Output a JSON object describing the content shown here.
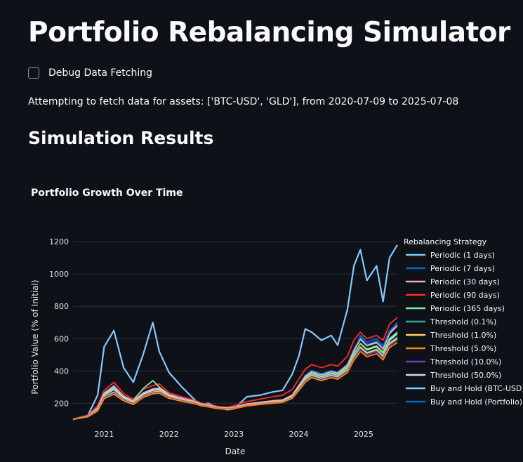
{
  "page": {
    "title": "Portfolio Rebalancing Simulator",
    "debug_checkbox_label": "Debug Data Fetching",
    "debug_checked": false,
    "fetch_message": "Attempting to fetch data for assets: ['BTC-USD', 'GLD'], from 2020-07-09 to 2025-07-08",
    "results_heading": "Simulation Results"
  },
  "chart_data": {
    "type": "line",
    "title": "Portfolio Growth Over Time",
    "xlabel": "Date",
    "ylabel": "Portfolio Value (% of Initial)",
    "x_ticks": [
      "2021",
      "2022",
      "2023",
      "2024",
      "2025"
    ],
    "y_ticks": [
      200,
      400,
      600,
      800,
      1000,
      1200
    ],
    "xlim": [
      2020.52,
      2025.52
    ],
    "ylim": [
      110,
      1240
    ],
    "grid": true,
    "legend_title": "Rebalancing Strategy",
    "legend_position": "right",
    "x": [
      2020.52,
      2020.75,
      2020.9,
      2021.0,
      2021.15,
      2021.3,
      2021.45,
      2021.6,
      2021.75,
      2021.85,
      2022.0,
      2022.2,
      2022.4,
      2022.5,
      2022.6,
      2022.75,
      2022.9,
      2023.0,
      2023.2,
      2023.4,
      2023.6,
      2023.75,
      2023.9,
      2024.0,
      2024.1,
      2024.2,
      2024.35,
      2024.5,
      2024.6,
      2024.75,
      2024.85,
      2024.95,
      2025.05,
      2025.2,
      2025.3,
      2025.4,
      2025.52
    ],
    "series": [
      {
        "name": "Periodic (1 days)",
        "color": "#83c9ff",
        "values": [
          100,
          120,
          170,
          260,
          300,
          240,
          210,
          260,
          285,
          290,
          250,
          230,
          210,
          195,
          190,
          175,
          170,
          175,
          195,
          205,
          215,
          220,
          250,
          310,
          370,
          400,
          380,
          400,
          390,
          440,
          530,
          600,
          560,
          580,
          540,
          640,
          690
        ]
      },
      {
        "name": "Periodic (7 days)",
        "color": "#0068c9",
        "values": [
          100,
          122,
          175,
          265,
          310,
          245,
          212,
          265,
          290,
          295,
          252,
          232,
          212,
          196,
          190,
          176,
          171,
          176,
          196,
          206,
          216,
          221,
          252,
          312,
          372,
          402,
          382,
          402,
          392,
          442,
          535,
          610,
          565,
          585,
          545,
          645,
          700
        ]
      },
      {
        "name": "Periodic (30 days)",
        "color": "#ffabab",
        "values": [
          100,
          121,
          172,
          262,
          305,
          242,
          211,
          262,
          288,
          292,
          251,
          231,
          211,
          195,
          190,
          175,
          170,
          175,
          195,
          205,
          215,
          220,
          250,
          308,
          366,
          396,
          376,
          396,
          386,
          436,
          525,
          595,
          555,
          575,
          535,
          630,
          680
        ]
      },
      {
        "name": "Periodic (90 days)",
        "color": "#ff2b2b",
        "values": [
          100,
          125,
          185,
          280,
          330,
          260,
          225,
          285,
          310,
          320,
          265,
          240,
          218,
          200,
          195,
          180,
          175,
          185,
          210,
          225,
          240,
          250,
          285,
          350,
          410,
          440,
          420,
          440,
          430,
          490,
          590,
          640,
          600,
          620,
          590,
          690,
          730
        ]
      },
      {
        "name": "Periodic (365 days)",
        "color": "#7defa1",
        "values": [
          100,
          120,
          168,
          255,
          295,
          245,
          215,
          290,
          340,
          300,
          255,
          230,
          210,
          194,
          188,
          174,
          168,
          174,
          193,
          203,
          212,
          218,
          246,
          300,
          356,
          386,
          366,
          386,
          376,
          424,
          505,
          570,
          535,
          555,
          515,
          600,
          640
        ]
      },
      {
        "name": "Threshold (0.1%)",
        "color": "#29b09d",
        "values": [
          100,
          118,
          160,
          240,
          270,
          225,
          200,
          245,
          270,
          275,
          240,
          220,
          202,
          188,
          182,
          170,
          165,
          170,
          188,
          197,
          205,
          210,
          238,
          290,
          345,
          375,
          355,
          375,
          365,
          410,
          490,
          550,
          515,
          535,
          495,
          575,
          610
        ]
      },
      {
        "name": "Threshold (1.0%)",
        "color": "#ffd16a",
        "values": [
          100,
          118,
          158,
          238,
          268,
          223,
          198,
          243,
          268,
          272,
          238,
          218,
          200,
          187,
          181,
          169,
          164,
          169,
          187,
          196,
          204,
          209,
          236,
          288,
          342,
          372,
          352,
          372,
          362,
          406,
          485,
          545,
          510,
          530,
          490,
          568,
          600
        ]
      },
      {
        "name": "Threshold (5.0%)",
        "color": "#ff8700",
        "values": [
          100,
          116,
          152,
          228,
          255,
          215,
          192,
          235,
          258,
          262,
          230,
          212,
          196,
          184,
          178,
          166,
          162,
          166,
          183,
          192,
          200,
          205,
          230,
          278,
          330,
          358,
          340,
          358,
          348,
          390,
          466,
          520,
          488,
          506,
          468,
          545,
          575
        ]
      },
      {
        "name": "Threshold (10.0%)",
        "color": "#6d3fc0",
        "values": [
          100,
          117,
          155,
          235,
          262,
          220,
          196,
          240,
          264,
          268,
          235,
          215,
          198,
          186,
          180,
          168,
          163,
          168,
          185,
          194,
          202,
          207,
          233,
          284,
          337,
          366,
          347,
          366,
          356,
          399,
          476,
          535,
          500,
          520,
          480,
          558,
          590
        ]
      },
      {
        "name": "Threshold (50.0%)",
        "color": "#d5dae5",
        "values": [
          100,
          119,
          165,
          250,
          285,
          235,
          208,
          255,
          280,
          284,
          246,
          226,
          207,
          192,
          186,
          172,
          167,
          172,
          191,
          200,
          209,
          214,
          243,
          298,
          354,
          384,
          364,
          384,
          374,
          420,
          505,
          570,
          530,
          550,
          510,
          590,
          630
        ]
      },
      {
        "name": "Buy and Hold (BTC-USD)",
        "color": "#83c9ff",
        "values": [
          100,
          125,
          250,
          550,
          650,
          420,
          330,
          500,
          700,
          520,
          390,
          300,
          220,
          190,
          200,
          175,
          160,
          165,
          240,
          250,
          270,
          280,
          380,
          490,
          660,
          640,
          590,
          620,
          560,
          780,
          1050,
          1150,
          960,
          1050,
          830,
          1100,
          1180
        ]
      },
      {
        "name": "Buy and Hold (Portfolio)",
        "color": "#0068c9",
        "values": [
          100,
          121,
          172,
          262,
          300,
          245,
          212,
          262,
          288,
          292,
          250,
          230,
          210,
          195,
          189,
          175,
          170,
          175,
          194,
          204,
          214,
          219,
          249,
          305,
          362,
          392,
          372,
          392,
          382,
          432,
          520,
          620,
          580,
          600,
          555,
          650,
          690
        ]
      }
    ]
  }
}
